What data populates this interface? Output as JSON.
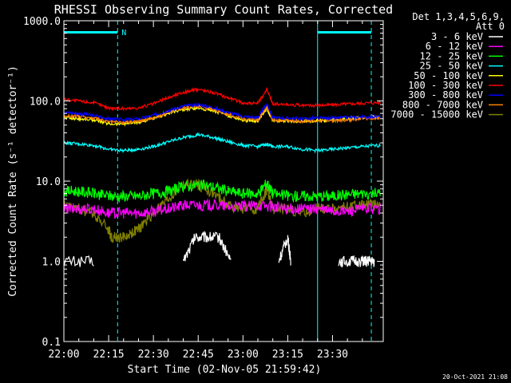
{
  "window": {
    "title": "RHESSI Observing Summary Count Rates, Corrected",
    "footer_timestamp": "20-Oct-2021 21:08"
  },
  "legend": {
    "header_line1": "Det 1,3,4,5,6,9,",
    "header_line2": "Att 0"
  },
  "colors": {
    "background": "#000000",
    "axes": "#ffffff",
    "overlay": "#00ffff"
  },
  "overlay_bars": [
    {
      "start": 0,
      "end": 18,
      "label": "N"
    },
    {
      "start": 85,
      "end": 103,
      "label": ""
    }
  ],
  "overlay_lines": [
    0,
    18,
    85,
    103
  ],
  "chart_data": {
    "type": "line",
    "title": "RHESSI Observing Summary Count Rates, Corrected",
    "xlabel": "Start Time (02-Nov-05 21:59:42)",
    "ylabel": "Corrected Count Rate (s⁻¹ detector⁻¹)",
    "x_unit": "minutes after 22:00",
    "xlim": [
      0,
      107
    ],
    "ylim": [
      0.1,
      1000.0
    ],
    "yscale": "log",
    "xticks": [
      {
        "value": 0,
        "label": "22:00"
      },
      {
        "value": 15,
        "label": "22:15"
      },
      {
        "value": 30,
        "label": "22:30"
      },
      {
        "value": 45,
        "label": "22:45"
      },
      {
        "value": 60,
        "label": "23:00"
      },
      {
        "value": 75,
        "label": "23:15"
      },
      {
        "value": 90,
        "label": "23:30"
      }
    ],
    "yticks": [
      {
        "value": 0.1,
        "label": "0.1"
      },
      {
        "value": 1.0,
        "label": "1.0"
      },
      {
        "value": 10.0,
        "label": "10.0"
      },
      {
        "value": 100.0,
        "label": "100.0"
      },
      {
        "value": 1000.0,
        "label": "1000.0"
      }
    ],
    "legend_position": "top-right",
    "series": [
      {
        "name": "3 - 6 keV",
        "color": "#ffffff",
        "x": [
          0,
          10,
          12,
          38,
          40,
          44,
          48,
          52,
          56,
          58,
          70,
          72,
          75,
          76,
          78,
          80,
          82,
          85,
          88,
          92,
          96,
          100,
          102,
          104,
          106
        ],
        "y": [
          1.0,
          1.0,
          null,
          null,
          1.0,
          2.0,
          2.0,
          2.0,
          1.0,
          null,
          null,
          1.0,
          2.0,
          1.0,
          null,
          null,
          null,
          null,
          null,
          1.0,
          1.0,
          1.0,
          1.0,
          1.0,
          null
        ]
      },
      {
        "name": "6 - 12 keV",
        "color": "#ff00ff",
        "x": [
          0,
          5,
          10,
          15,
          20,
          25,
          30,
          35,
          40,
          45,
          50,
          55,
          60,
          65,
          70,
          75,
          80,
          85,
          90,
          95,
          100,
          106
        ],
        "y": [
          4.5,
          4.5,
          4.5,
          4.0,
          4.0,
          4.0,
          4.2,
          4.5,
          5.0,
          5.0,
          5.0,
          4.8,
          4.8,
          5.0,
          4.8,
          4.5,
          4.5,
          4.5,
          4.2,
          4.2,
          4.5,
          4.5
        ]
      },
      {
        "name": "12 - 25 keV",
        "color": "#00ff00",
        "x": [
          0,
          5,
          10,
          15,
          20,
          25,
          30,
          35,
          40,
          45,
          50,
          55,
          60,
          65,
          68,
          70,
          75,
          80,
          85,
          90,
          95,
          100,
          106
        ],
        "y": [
          7.5,
          7.5,
          7.0,
          6.5,
          6.5,
          6.5,
          7.0,
          7.5,
          8.5,
          9.0,
          8.5,
          7.5,
          7.0,
          7.0,
          9.5,
          7.0,
          6.5,
          6.5,
          6.5,
          6.5,
          6.8,
          7.0,
          7.0
        ]
      },
      {
        "name": "25 - 50 keV",
        "color": "#00ffff",
        "x": [
          0,
          5,
          10,
          15,
          20,
          25,
          30,
          35,
          40,
          45,
          50,
          55,
          60,
          65,
          68,
          70,
          75,
          80,
          85,
          90,
          95,
          100,
          106
        ],
        "y": [
          30,
          29,
          28,
          25,
          24,
          25,
          27,
          31,
          35,
          38,
          35,
          31,
          28,
          27,
          29,
          27,
          27,
          25,
          24,
          25,
          26,
          27,
          28
        ]
      },
      {
        "name": "50 - 100 keV",
        "color": "#ffff00",
        "x": [
          0,
          5,
          10,
          15,
          20,
          25,
          30,
          35,
          40,
          45,
          50,
          55,
          60,
          65,
          68,
          70,
          75,
          80,
          85,
          90,
          95,
          100,
          106
        ],
        "y": [
          62,
          60,
          58,
          52,
          52,
          54,
          60,
          70,
          78,
          82,
          76,
          66,
          58,
          56,
          80,
          57,
          56,
          56,
          57,
          58,
          60,
          62,
          64
        ]
      },
      {
        "name": "100 - 300 keV",
        "color": "#ff0000",
        "x": [
          0,
          5,
          10,
          15,
          20,
          25,
          30,
          35,
          40,
          45,
          50,
          55,
          60,
          65,
          68,
          70,
          75,
          80,
          85,
          90,
          95,
          100,
          106
        ],
        "y": [
          105,
          100,
          95,
          82,
          80,
          82,
          92,
          110,
          128,
          140,
          128,
          110,
          95,
          93,
          140,
          92,
          90,
          88,
          88,
          90,
          92,
          94,
          96
        ]
      },
      {
        "name": "300 - 800 keV",
        "color": "#0000ff",
        "x": [
          0,
          5,
          10,
          15,
          20,
          25,
          30,
          35,
          40,
          45,
          50,
          55,
          60,
          65,
          68,
          70,
          75,
          80,
          85,
          90,
          95,
          100,
          106
        ],
        "y": [
          72,
          70,
          66,
          60,
          58,
          60,
          66,
          76,
          86,
          90,
          83,
          72,
          64,
          62,
          92,
          62,
          61,
          60,
          61,
          61,
          62,
          63,
          64
        ]
      },
      {
        "name": "800 - 7000 keV",
        "color": "#ff8000",
        "x": [
          0,
          5,
          10,
          15,
          20,
          25,
          30,
          35,
          40,
          45,
          50,
          55,
          60,
          65,
          68,
          70,
          75,
          80,
          85,
          90,
          95,
          100,
          106
        ],
        "y": [
          66,
          64,
          61,
          55,
          54,
          56,
          62,
          72,
          82,
          86,
          79,
          68,
          60,
          58,
          86,
          58,
          57,
          56,
          57,
          57,
          58,
          60,
          61
        ]
      },
      {
        "name": "7000 - 15000 keV",
        "color": "#808000",
        "x": [
          0,
          5,
          10,
          15,
          16,
          20,
          25,
          30,
          35,
          40,
          45,
          50,
          55,
          60,
          65,
          68,
          70,
          75,
          80,
          85,
          90,
          95,
          100,
          106
        ],
        "y": [
          5.0,
          4.5,
          4.0,
          2.5,
          2.0,
          2.0,
          2.5,
          4.0,
          6.0,
          9.0,
          9.0,
          7.0,
          5.0,
          4.5,
          4.5,
          8.0,
          4.5,
          4.5,
          4.0,
          4.5,
          4.5,
          4.8,
          5.0,
          5.0
        ]
      }
    ]
  }
}
